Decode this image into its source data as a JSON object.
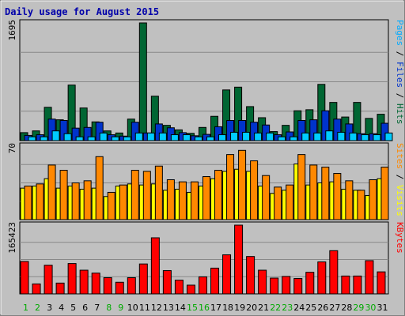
{
  "chart_data": {
    "title": "Daily usage for August 2015",
    "days": [
      "1",
      "2",
      "3",
      "4",
      "5",
      "6",
      "7",
      "8",
      "9",
      "10",
      "11",
      "12",
      "13",
      "14",
      "15",
      "16",
      "17",
      "18",
      "19",
      "20",
      "21",
      "22",
      "23",
      "24",
      "25",
      "26",
      "27",
      "28",
      "29",
      "30",
      "31"
    ],
    "weekend_days": [
      "1",
      "2",
      "8",
      "9",
      "15",
      "16",
      "22",
      "23",
      "29",
      "30"
    ],
    "colors": {
      "hits": "#006633",
      "files": "#0033cc",
      "pages": "#00ccff",
      "visits": "#ffff00",
      "sites": "#ff8800",
      "kbytes": "#ff0000",
      "day_weekday": "#000000",
      "day_weekend": "#00aa00",
      "title": "#0000aa"
    },
    "panels": [
      {
        "type": "bar",
        "max_label": "1695",
        "ymax": 1695,
        "legend": [
          {
            "text": "Pages",
            "color": "#00aaff"
          },
          {
            "text": " / ",
            "color": "#000000"
          },
          {
            "text": "Files",
            "color": "#0033cc"
          },
          {
            "text": " / ",
            "color": "#000000"
          },
          {
            "text": "Hits",
            "color": "#006633"
          }
        ],
        "series": [
          {
            "name": "Hits",
            "color": "#006633",
            "values": [
              115,
              140,
              480,
              300,
              800,
              470,
              270,
              140,
              110,
              310,
              1695,
              640,
              220,
              155,
              105,
              190,
              350,
              730,
              770,
              490,
              330,
              130,
              220,
              430,
              445,
              810,
              550,
              340,
              550,
              320,
              380
            ]
          },
          {
            "name": "Files",
            "color": "#0033cc",
            "values": [
              75,
              85,
              310,
              290,
              180,
              190,
              265,
              85,
              65,
              265,
              110,
              240,
              185,
              115,
              70,
              90,
              200,
              290,
              290,
              265,
              225,
              85,
              125,
              290,
              300,
              430,
              310,
              240,
              100,
              100,
              250
            ]
          },
          {
            "name": "Pages",
            "color": "#00ccff",
            "values": [
              55,
              55,
              140,
              100,
              55,
              55,
              110,
              55,
              55,
              110,
              110,
              110,
              85,
              85,
              55,
              55,
              85,
              120,
              120,
              110,
              110,
              55,
              55,
              110,
              110,
              140,
              120,
              110,
              85,
              85,
              110
            ]
          }
        ]
      },
      {
        "type": "bar",
        "max_label": "70",
        "ymax": 70,
        "legend": [
          {
            "text": "Sites",
            "color": "#ff8800"
          },
          {
            "text": " / ",
            "color": "#000000"
          },
          {
            "text": "Visits",
            "color": "#ffff00"
          }
        ],
        "series": [
          {
            "name": "Visits",
            "color": "#ffff00",
            "values": [
              30,
              32,
              39,
              30,
              32,
              29,
              30,
              22,
              32,
              34,
              33,
              34,
              28,
              29,
              26,
              32,
              39,
              46,
              48,
              46,
              32,
              25,
              28,
              53,
              33,
              35,
              36,
              29,
              28,
              23,
              39
            ]
          },
          {
            "name": "Sites",
            "color": "#ff8800",
            "values": [
              32,
              34,
              52,
              47,
              35,
              37,
              60,
              26,
              33,
              47,
              46,
              51,
              38,
              36,
              36,
              41,
              47,
              62,
              66,
              56,
              42,
              31,
              33,
              62,
              52,
              50,
              44,
              37,
              28,
              38,
              50
            ]
          }
        ]
      },
      {
        "type": "bar",
        "max_label": "165423",
        "ymax": 165423,
        "legend": [
          {
            "text": "KBytes",
            "color": "#ff0000"
          }
        ],
        "series": [
          {
            "name": "KBytes",
            "color": "#ff0000",
            "values": [
              78000,
              24000,
              69000,
              26000,
              73000,
              57000,
              50000,
              39000,
              28000,
              39000,
              72000,
              135000,
              56000,
              33000,
              21000,
              41000,
              62000,
              94000,
              165423,
              90000,
              57000,
              38000,
              42000,
              37000,
              52000,
              77000,
              104000,
              43000,
              43000,
              80000,
              53000
            ]
          }
        ]
      }
    ]
  }
}
